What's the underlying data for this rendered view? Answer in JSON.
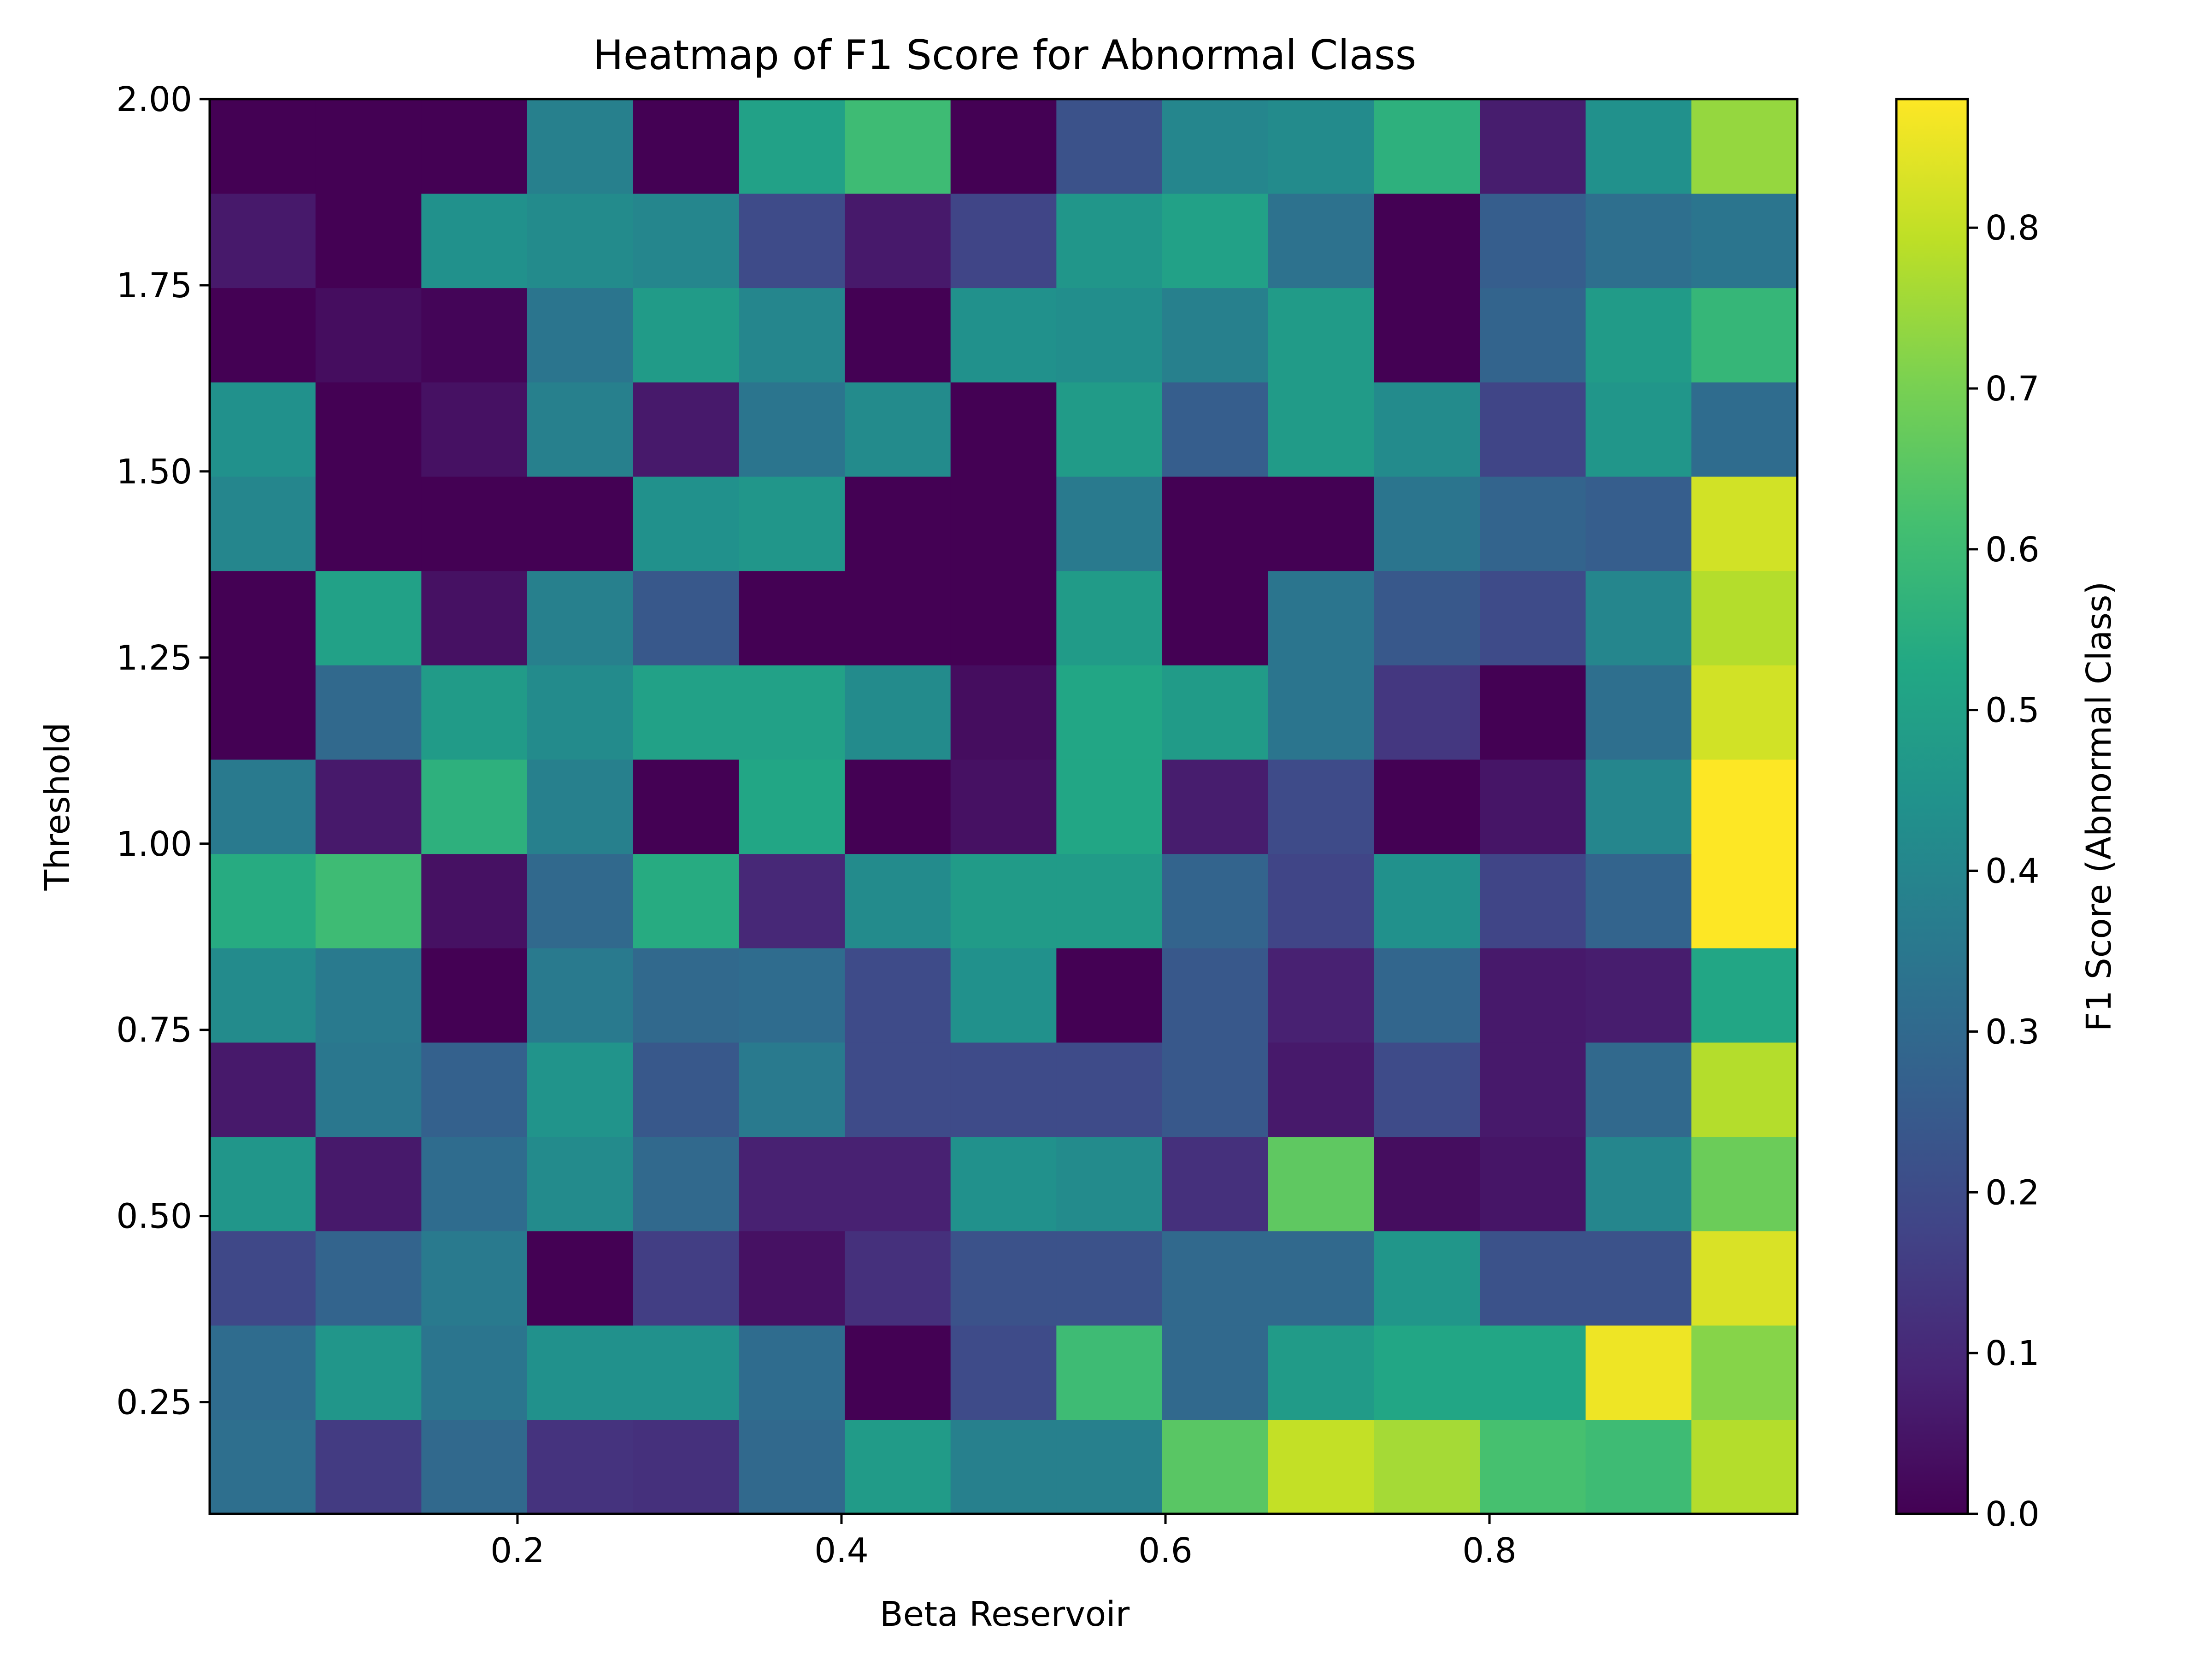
{
  "chart_data": {
    "type": "heatmap",
    "title": "Heatmap of F1 Score for Abnormal Class",
    "xlabel": "Beta Reservoir",
    "ylabel": "Threshold",
    "colorbar_label": "F1 Score (Abnormal Class)",
    "colormap": "viridis",
    "x_range": [
      0.01,
      0.99
    ],
    "y_range": [
      0.1,
      2.0
    ],
    "x_ticks": [
      0.2,
      0.4,
      0.6,
      0.8
    ],
    "x_tick_labels": [
      "0.2",
      "0.4",
      "0.6",
      "0.8"
    ],
    "y_ticks": [
      0.25,
      0.5,
      0.75,
      1.0,
      1.25,
      1.5,
      1.75,
      2.0
    ],
    "y_tick_labels": [
      "0.25",
      "0.50",
      "0.75",
      "1.00",
      "1.25",
      "1.50",
      "1.75",
      "2.00"
    ],
    "color_range": [
      0.0,
      0.88
    ],
    "colorbar_ticks": [
      0.0,
      0.1,
      0.2,
      0.3,
      0.4,
      0.5,
      0.6,
      0.7,
      0.8
    ],
    "colorbar_tick_labels": [
      "0.0",
      "0.1",
      "0.2",
      "0.3",
      "0.4",
      "0.5",
      "0.6",
      "0.7",
      "0.8"
    ],
    "n_cols": 15,
    "n_rows": 15,
    "rows_order": "bottom_to_top",
    "values": [
      [
        0.32,
        0.15,
        0.3,
        0.13,
        0.12,
        0.3,
        0.48,
        0.38,
        0.38,
        0.65,
        0.8,
        0.76,
        0.62,
        0.6,
        0.78
      ],
      [
        0.31,
        0.46,
        0.34,
        0.44,
        0.44,
        0.31,
        0.0,
        0.2,
        0.6,
        0.3,
        0.48,
        0.52,
        0.52,
        0.86,
        0.72
      ],
      [
        0.19,
        0.28,
        0.36,
        0.0,
        0.16,
        0.04,
        0.12,
        0.22,
        0.22,
        0.3,
        0.3,
        0.46,
        0.22,
        0.22,
        0.83
      ],
      [
        0.46,
        0.06,
        0.31,
        0.42,
        0.3,
        0.08,
        0.08,
        0.44,
        0.42,
        0.12,
        0.66,
        0.03,
        0.05,
        0.4,
        0.68
      ],
      [
        0.06,
        0.35,
        0.27,
        0.45,
        0.24,
        0.36,
        0.2,
        0.2,
        0.2,
        0.24,
        0.06,
        0.2,
        0.06,
        0.3,
        0.78
      ],
      [
        0.42,
        0.36,
        0.0,
        0.36,
        0.3,
        0.31,
        0.2,
        0.44,
        0.0,
        0.24,
        0.08,
        0.29,
        0.06,
        0.07,
        0.52
      ],
      [
        0.54,
        0.6,
        0.04,
        0.3,
        0.54,
        0.1,
        0.42,
        0.48,
        0.48,
        0.28,
        0.18,
        0.44,
        0.18,
        0.28,
        0.88
      ],
      [
        0.36,
        0.06,
        0.56,
        0.38,
        0.0,
        0.52,
        0.0,
        0.04,
        0.52,
        0.07,
        0.2,
        0.0,
        0.05,
        0.4,
        0.88
      ],
      [
        0.0,
        0.3,
        0.48,
        0.42,
        0.5,
        0.5,
        0.42,
        0.03,
        0.52,
        0.48,
        0.34,
        0.14,
        0.0,
        0.32,
        0.82
      ],
      [
        0.0,
        0.5,
        0.04,
        0.38,
        0.24,
        0.0,
        0.0,
        0.0,
        0.48,
        0.0,
        0.34,
        0.24,
        0.2,
        0.4,
        0.78
      ],
      [
        0.4,
        0.0,
        0.0,
        0.0,
        0.44,
        0.46,
        0.0,
        0.0,
        0.36,
        0.0,
        0.0,
        0.34,
        0.28,
        0.26,
        0.82
      ],
      [
        0.44,
        0.0,
        0.04,
        0.38,
        0.06,
        0.34,
        0.42,
        0.0,
        0.48,
        0.26,
        0.48,
        0.42,
        0.18,
        0.46,
        0.31
      ],
      [
        0.0,
        0.03,
        0.01,
        0.34,
        0.48,
        0.4,
        0.0,
        0.44,
        0.43,
        0.38,
        0.48,
        0.0,
        0.28,
        0.48,
        0.58
      ],
      [
        0.06,
        0.0,
        0.44,
        0.42,
        0.4,
        0.2,
        0.06,
        0.18,
        0.46,
        0.5,
        0.33,
        0.0,
        0.26,
        0.32,
        0.34
      ],
      [
        0.0,
        0.0,
        0.0,
        0.38,
        0.0,
        0.5,
        0.6,
        0.0,
        0.22,
        0.4,
        0.42,
        0.56,
        0.07,
        0.44,
        0.74
      ]
    ]
  }
}
